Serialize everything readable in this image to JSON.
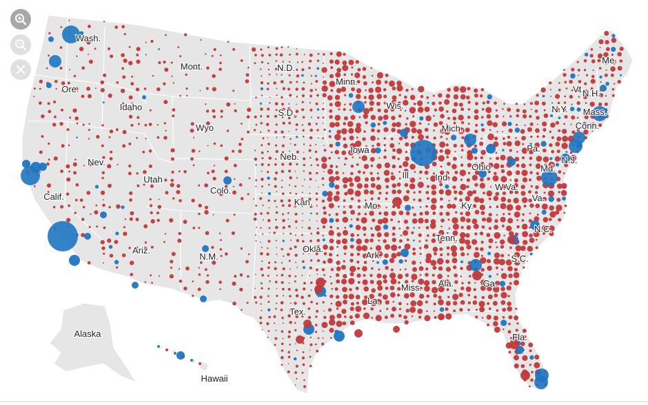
{
  "controls": {
    "zoom_in_icon": "magnifier-plus-icon",
    "zoom_out_icon": "magnifier-minus-icon",
    "reset_icon": "close-x-icon"
  },
  "colors": {
    "land": "#e6e6e6",
    "republican": "#c0393b",
    "democratic": "#1f75c1",
    "label": "#222222"
  },
  "states": [
    {
      "id": "wash",
      "label": "Wash."
    },
    {
      "id": "ore",
      "label": "Ore."
    },
    {
      "id": "calif",
      "label": "Calif."
    },
    {
      "id": "nev",
      "label": "Nev."
    },
    {
      "id": "idaho",
      "label": "Idaho"
    },
    {
      "id": "mont",
      "label": "Mont."
    },
    {
      "id": "wyo",
      "label": "Wyo"
    },
    {
      "id": "utah",
      "label": "Utah"
    },
    {
      "id": "ariz",
      "label": "Ariz."
    },
    {
      "id": "colo",
      "label": "Colo."
    },
    {
      "id": "nm",
      "label": "N.M."
    },
    {
      "id": "nd",
      "label": "N.D."
    },
    {
      "id": "sd",
      "label": "S.D."
    },
    {
      "id": "neb",
      "label": "Neb."
    },
    {
      "id": "kan",
      "label": "Kan."
    },
    {
      "id": "okla",
      "label": "Okla."
    },
    {
      "id": "tex",
      "label": "Tex."
    },
    {
      "id": "minn",
      "label": "Minn."
    },
    {
      "id": "iowa",
      "label": "Iowa"
    },
    {
      "id": "mo",
      "label": "Mo."
    },
    {
      "id": "ark",
      "label": "Ark."
    },
    {
      "id": "la",
      "label": "La."
    },
    {
      "id": "wis",
      "label": "Wis."
    },
    {
      "id": "ill",
      "label": "Ill."
    },
    {
      "id": "mich",
      "label": "Mich."
    },
    {
      "id": "ind",
      "label": "Ind."
    },
    {
      "id": "ohio",
      "label": "Ohio"
    },
    {
      "id": "ky",
      "label": "Ky."
    },
    {
      "id": "tenn",
      "label": "Tenn."
    },
    {
      "id": "miss",
      "label": "Miss."
    },
    {
      "id": "ala",
      "label": "Ala."
    },
    {
      "id": "ga",
      "label": "Ga."
    },
    {
      "id": "fla",
      "label": "Fla."
    },
    {
      "id": "sc",
      "label": "S.C."
    },
    {
      "id": "nc",
      "label": "N.C."
    },
    {
      "id": "va",
      "label": "Va."
    },
    {
      "id": "wva",
      "label": "W.Va."
    },
    {
      "id": "pa",
      "label": "Pa."
    },
    {
      "id": "ny",
      "label": "N.Y."
    },
    {
      "id": "vt",
      "label": "Vt."
    },
    {
      "id": "nh",
      "label": "N.H."
    },
    {
      "id": "me",
      "label": "Me."
    },
    {
      "id": "mass",
      "label": "Mass."
    },
    {
      "id": "conn",
      "label": "Conn."
    },
    {
      "id": "nj",
      "label": "N.J."
    },
    {
      "id": "md",
      "label": "Md."
    },
    {
      "id": "alaska",
      "label": "Alaska"
    },
    {
      "id": "hawaii",
      "label": "Hawaii"
    }
  ]
}
